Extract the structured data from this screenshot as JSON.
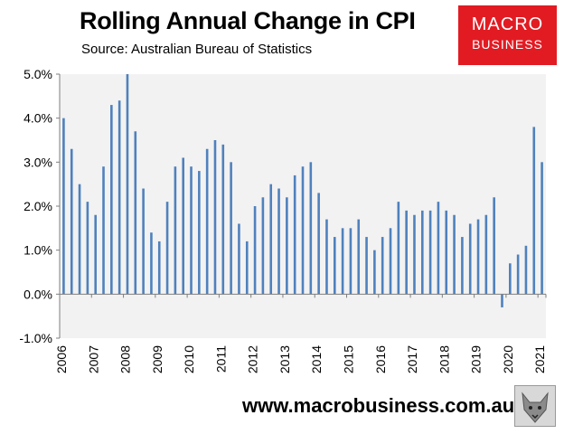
{
  "header": {
    "title": "Rolling Annual Change in CPI",
    "subtitle": "Source: Australian Bureau of Statistics"
  },
  "logo": {
    "line1": "MACRO",
    "line2": "BUSINESS"
  },
  "footer": {
    "url": "www.macrobusiness.com.au",
    "mascot_icon": "wolf-icon"
  },
  "colors": {
    "bar": "#4f81bd",
    "plot_bg": "#f2f2f2",
    "brand": "#e21b23"
  },
  "chart_data": {
    "type": "bar",
    "title": "Rolling Annual Change in CPI",
    "xlabel": "",
    "ylabel": "",
    "ylim": [
      -1.0,
      5.0
    ],
    "yticks": [
      -1.0,
      0.0,
      1.0,
      2.0,
      3.0,
      4.0,
      5.0
    ],
    "ytick_labels": [
      "-1.0%",
      "0.0%",
      "1.0%",
      "2.0%",
      "3.0%",
      "4.0%",
      "5.0%"
    ],
    "year_labels": [
      "2006",
      "2007",
      "2008",
      "2009",
      "2010",
      "2011",
      "2012",
      "2013",
      "2014",
      "2015",
      "2016",
      "2017",
      "2018",
      "2019",
      "2020",
      "2021"
    ],
    "grid": false,
    "series": [
      {
        "name": "Rolling annual change in CPI (%)",
        "values": [
          4.0,
          3.3,
          2.5,
          2.1,
          1.8,
          2.9,
          4.3,
          4.4,
          5.0,
          3.7,
          2.4,
          1.4,
          1.2,
          2.1,
          2.9,
          3.1,
          2.9,
          2.8,
          3.3,
          3.5,
          3.4,
          3.0,
          1.6,
          1.2,
          2.0,
          2.2,
          2.5,
          2.4,
          2.2,
          2.7,
          2.9,
          3.0,
          2.3,
          1.7,
          1.3,
          1.5,
          1.5,
          1.7,
          1.3,
          1.0,
          1.3,
          1.5,
          2.1,
          1.9,
          1.8,
          1.9,
          1.9,
          2.1,
          1.9,
          1.8,
          1.3,
          1.6,
          1.7,
          1.8,
          2.2,
          -0.3,
          0.7,
          0.9,
          1.1,
          3.8,
          3.0
        ]
      }
    ]
  }
}
